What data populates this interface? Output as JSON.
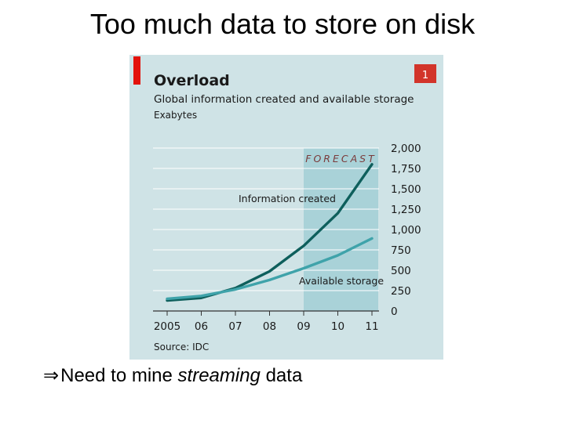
{
  "slide": {
    "title": "Too much data to store on disk",
    "bullet_symbol": "⇒",
    "bullet_prefix": "Need to mine ",
    "bullet_emphasis": "streaming",
    "bullet_suffix": " data"
  },
  "chart_data": {
    "type": "line",
    "badge": "1",
    "title": "Overload",
    "subtitle": "Global information created and available storage",
    "ylabel": "Exabytes",
    "source": "Source: IDC",
    "forecast_label": "FORECAST",
    "forecast_range": [
      "2009",
      "2011"
    ],
    "x": [
      "2005",
      "2006",
      "2007",
      "2008",
      "2009",
      "2010",
      "2011"
    ],
    "x_tick_labels": [
      "2005",
      "06",
      "07",
      "08",
      "09",
      "10",
      "11"
    ],
    "y_ticks": [
      0,
      250,
      500,
      750,
      1000,
      1250,
      1500,
      1750,
      2000
    ],
    "y_tick_labels": [
      "0",
      "250",
      "500",
      "750",
      "1,000",
      "1,250",
      "1,500",
      "1,750",
      "2,000"
    ],
    "ylim": [
      0,
      2000
    ],
    "grid": true,
    "series": [
      {
        "name": "Information created",
        "color": "#0e5f5c",
        "values": [
          130,
          161,
          281,
          487,
          800,
          1200,
          1800
        ]
      },
      {
        "name": "Available storage",
        "color": "#3fa3aa",
        "values": [
          150,
          185,
          264,
          381,
          524,
          683,
          890
        ]
      }
    ],
    "colors": {
      "background": "#cfe3e6",
      "forecast_band": "#a9d2d8",
      "accent_bar": "#e3120b",
      "badge": "#d2342a",
      "grid": "#ffffff"
    }
  }
}
